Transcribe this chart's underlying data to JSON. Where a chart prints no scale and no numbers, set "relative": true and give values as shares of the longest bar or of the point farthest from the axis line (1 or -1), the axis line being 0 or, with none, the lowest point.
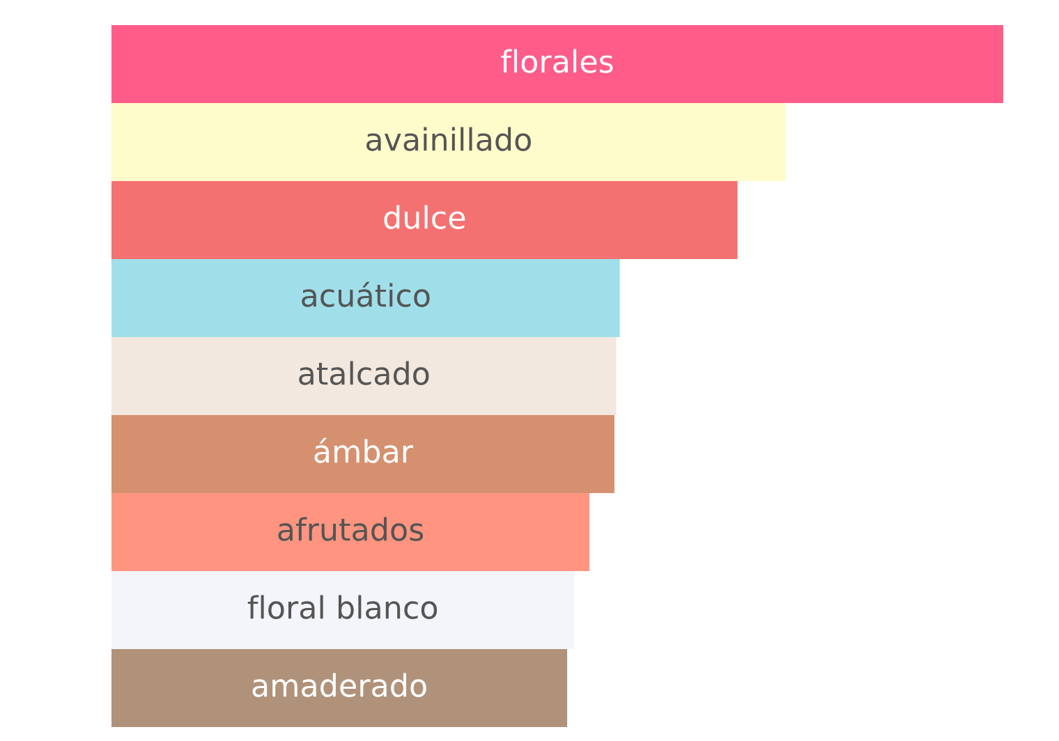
{
  "chart_data": {
    "type": "bar",
    "orientation": "horizontal",
    "relative": true,
    "categories": [
      "florales",
      "avainillado",
      "dulce",
      "acuático",
      "atalcado",
      "ámbar",
      "afrutados",
      "floral blanco",
      "amaderado"
    ],
    "values": [
      1,
      0.756,
      0.702,
      0.57,
      0.566,
      0.564,
      0.536,
      0.519,
      0.511
    ],
    "colors": [
      "#ff5c8a",
      "#fffccc",
      "#f47171",
      "#a0dfea",
      "#f3e8df",
      "#d59070",
      "#ff9580",
      "#f4f5fa",
      "#b0927a"
    ]
  }
}
